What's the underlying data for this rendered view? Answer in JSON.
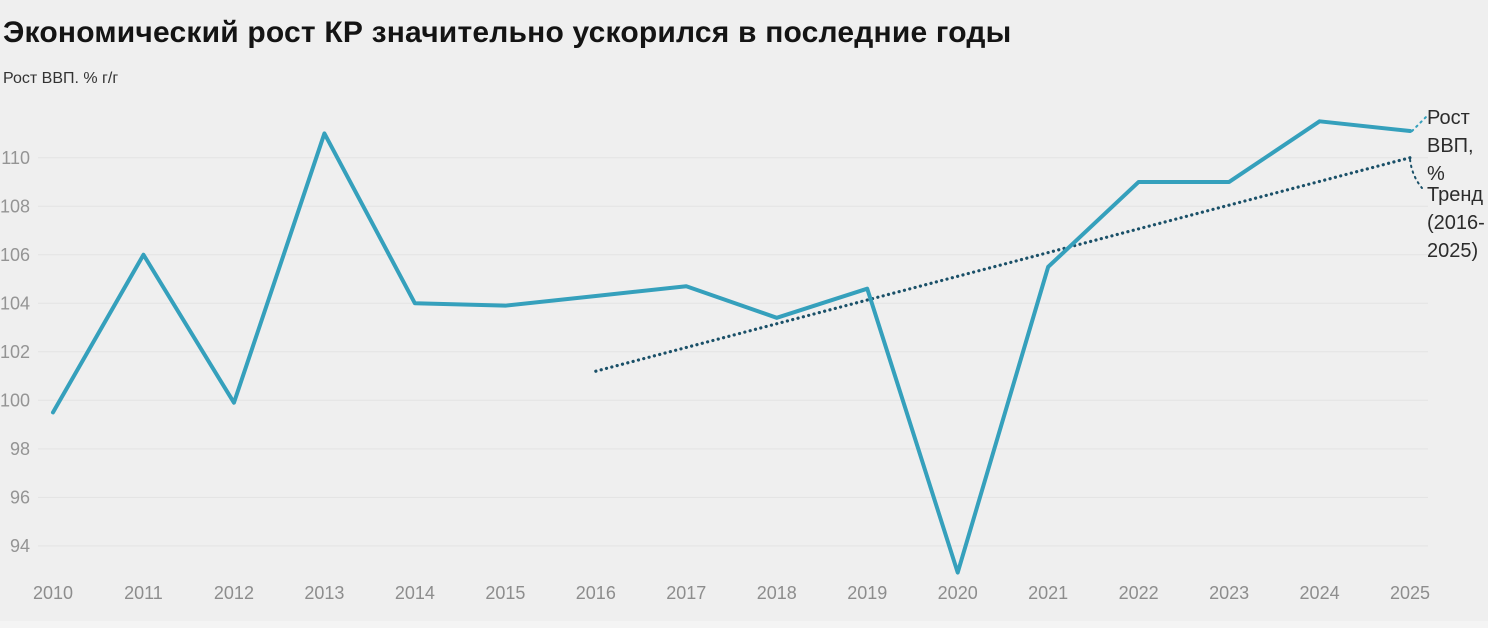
{
  "title": "Экономический рост КР значительно ускорился в последние годы",
  "subtitle": "Рост ВВП. % г/г",
  "chart_data": {
    "type": "line",
    "title": "Экономический рост КР значительно ускорился в последние годы",
    "ylabel": "Рост ВВП. % г/г",
    "xlabel": "",
    "x": [
      2010,
      2011,
      2012,
      2013,
      2014,
      2015,
      2016,
      2017,
      2018,
      2019,
      2020,
      2021,
      2022,
      2023,
      2024,
      2025
    ],
    "series": [
      {
        "name": "Рост ВВП, %",
        "x": [
          2010,
          2011,
          2012,
          2013,
          2014,
          2015,
          2016,
          2017,
          2018,
          2019,
          2020,
          2021,
          2022,
          2023,
          2024,
          2025
        ],
        "values": [
          99.5,
          106.0,
          99.9,
          111.0,
          104.0,
          103.9,
          104.3,
          104.7,
          103.4,
          104.6,
          92.9,
          105.5,
          109.0,
          109.0,
          111.5,
          111.1
        ],
        "color": "#35a0bc",
        "style": "solid"
      },
      {
        "name": "Тренд (2016-2025)",
        "x": [
          2016,
          2025
        ],
        "values": [
          101.2,
          110.0
        ],
        "color": "#1a5068",
        "style": "dotted"
      }
    ],
    "yticks": [
      94,
      96,
      98,
      100,
      102,
      104,
      106,
      108,
      110
    ],
    "ylim": [
      92.5,
      112.2
    ],
    "grid": true,
    "legend_position": "right",
    "legend": [
      {
        "label": "Рост ВВП, %",
        "lines": [
          "Рост",
          "ВВП,",
          "%"
        ]
      },
      {
        "label": "Тренд (2016-2025)",
        "lines": [
          "Тренд",
          "(2016-",
          "2025)"
        ]
      }
    ]
  },
  "colors": {
    "background": "#efefef",
    "gridline": "#e3e3e3",
    "axis_text": "#949494",
    "gdp_line": "#35a0bc",
    "trend_line": "#1a5068",
    "title_text": "#141414"
  }
}
